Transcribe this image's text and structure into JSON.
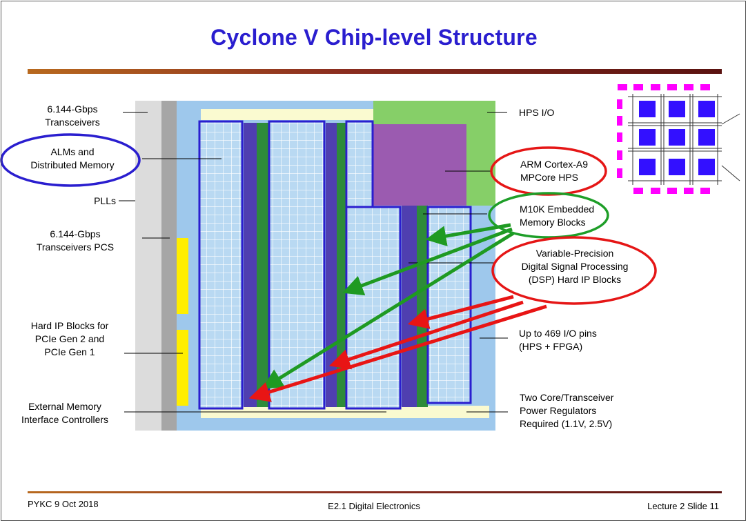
{
  "slide": {
    "title": "Cyclone V Chip-level Structure",
    "footer": {
      "left": "PYKC  9 Oct 2018",
      "center": "E2.1 Digital Electronics",
      "right": "Lecture 2 Slide 11"
    }
  },
  "labels_left": {
    "transceivers": [
      "6.144-Gbps",
      "Transceivers"
    ],
    "alms": [
      "ALMs and",
      "Distributed Memory"
    ],
    "plls": "PLLs",
    "pcs": [
      "6.144-Gbps",
      "Transceivers PCS"
    ],
    "hard_ip": [
      "Hard IP Blocks for",
      "PCIe Gen 2 and",
      "PCIe Gen 1"
    ],
    "emif": [
      "External Memory",
      "Interface Controllers"
    ]
  },
  "labels_right": {
    "hps_io": "HPS I/O",
    "arm": [
      "ARM Cortex-A9",
      "MPCore HPS"
    ],
    "m10k": [
      "M10K Embedded",
      "Memory Blocks"
    ],
    "dsp": [
      "Variable-Precision",
      "Digital Signal Processing",
      "(DSP) Hard IP Blocks"
    ],
    "io_pins": [
      "Up to 469 I/O pins",
      "(HPS + FPGA)"
    ],
    "power": [
      "Two Core/Transceiver",
      "Power Regulators",
      "Required (1.1V, 2.5V)"
    ]
  },
  "colors": {
    "title": "#2a1ecf",
    "die_blue": "#9ec8ec",
    "alm_fill": "#b9d9f2",
    "alm_border": "#2a1ecf",
    "dsp_column": "#4f3fb0",
    "m10k_column": "#2e8b3a",
    "hps_io": "#86cf68",
    "hps_core": "#9b5bb0",
    "hard_ip": "#ffee00",
    "edge_gray": "#dcdcdc",
    "edge_dark": "#a6a6a6",
    "highlight_blue": "#2a1ecf",
    "highlight_red": "#e51616",
    "highlight_green": "#1e9e28",
    "arrow_green": "#1f9a22",
    "arrow_red": "#e81515",
    "package_pin": "#ff00ff",
    "package_die": "#3310ff"
  }
}
